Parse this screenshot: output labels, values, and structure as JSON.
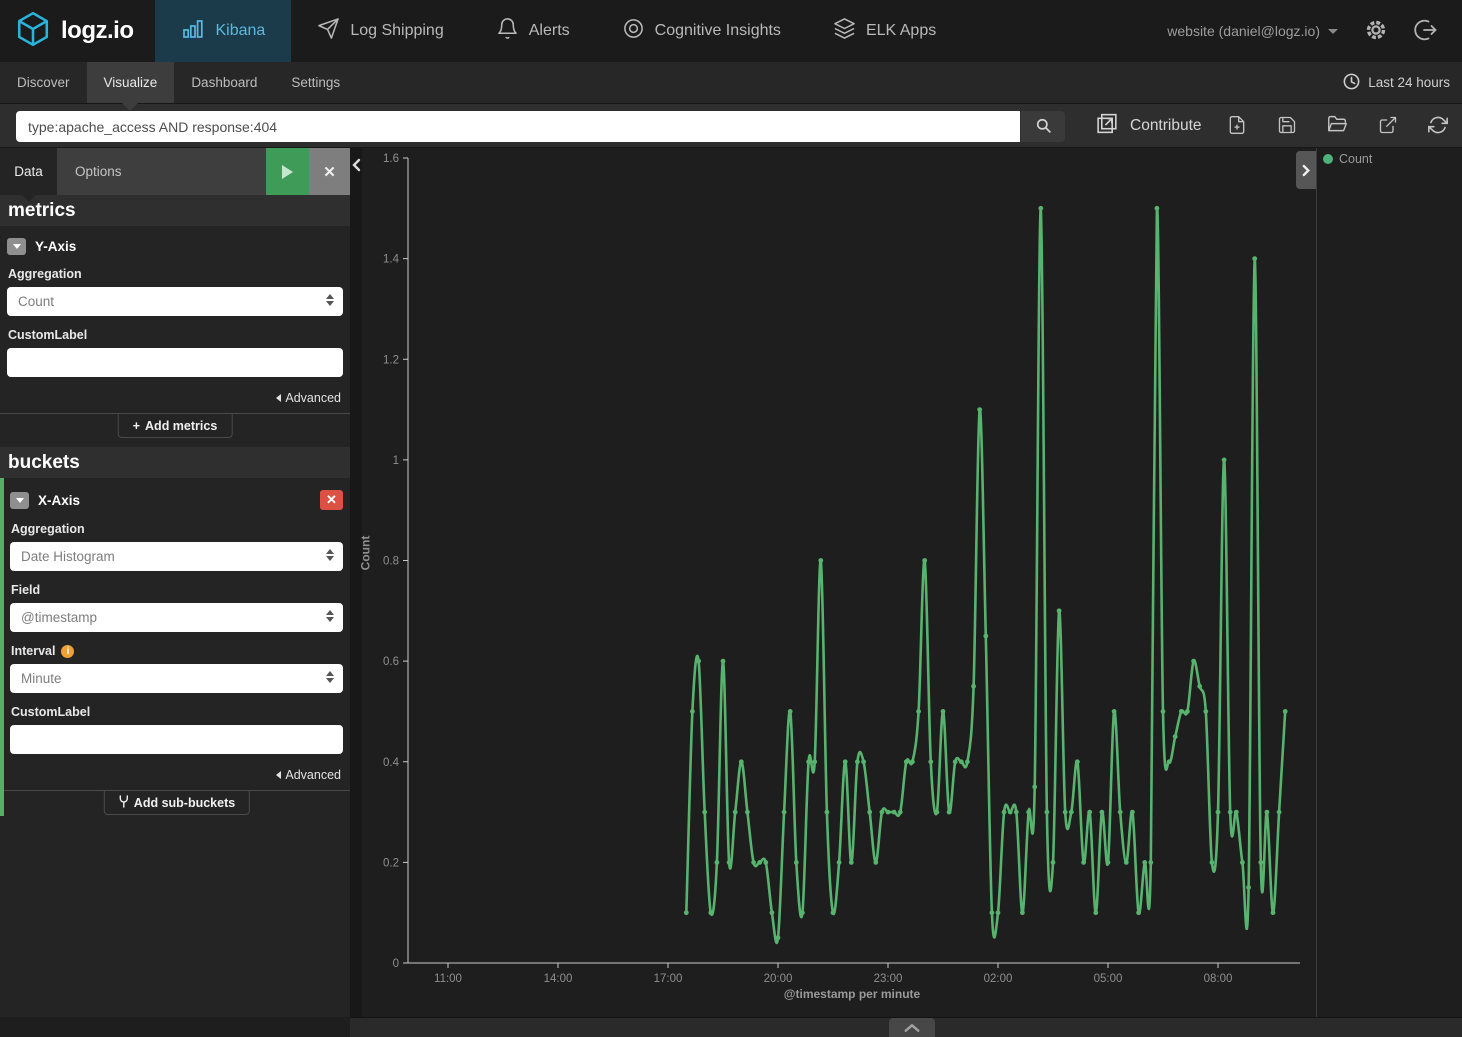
{
  "header": {
    "logo": "logz.io",
    "nav": [
      {
        "label": "Kibana",
        "icon": "bar-chart-icon",
        "active": true
      },
      {
        "label": "Log Shipping",
        "icon": "paper-plane-icon",
        "active": false
      },
      {
        "label": "Alerts",
        "icon": "bell-icon",
        "active": false
      },
      {
        "label": "Cognitive Insights",
        "icon": "eye-icon",
        "active": false
      },
      {
        "label": "ELK Apps",
        "icon": "layers-icon",
        "active": false
      }
    ],
    "account_label": "website (daniel@logz.io)",
    "account_icons": [
      "caret-down-icon",
      "gear-icon",
      "sign-out-icon"
    ]
  },
  "subnav": {
    "tabs": [
      {
        "label": "Discover",
        "active": false
      },
      {
        "label": "Visualize",
        "active": true
      },
      {
        "label": "Dashboard",
        "active": false
      },
      {
        "label": "Settings",
        "active": false
      }
    ],
    "time_range": "Last 24 hours",
    "time_icon": "clock-icon"
  },
  "toolbar": {
    "query": "type:apache_access AND response:404",
    "search_icon": "search-icon",
    "contribute_label": "Contribute",
    "action_icons": [
      "new-visualization-icon",
      "save-icon",
      "open-icon",
      "share-icon",
      "refresh-icon"
    ]
  },
  "sidebar": {
    "tabs": [
      {
        "label": "Data",
        "active": true
      },
      {
        "label": "Options",
        "active": false
      }
    ],
    "apply_icon": "play-icon",
    "discard_icon": "close-icon",
    "metrics": {
      "section_title": "metrics",
      "group_title": "Y-Axis",
      "aggregation_label": "Aggregation",
      "aggregation_value": "Count",
      "custom_label_label": "CustomLabel",
      "custom_label_value": "",
      "advanced_label": "Advanced",
      "add_plus": "+",
      "add_button": "Add metrics"
    },
    "buckets": {
      "section_title": "buckets",
      "group_title": "X-Axis",
      "aggregation_label": "Aggregation",
      "aggregation_value": "Date Histogram",
      "field_label": "Field",
      "field_value": "@timestamp",
      "interval_label": "Interval",
      "interval_info_icon": "info-icon",
      "interval_value": "Minute",
      "custom_label_label": "CustomLabel",
      "custom_label_value": "",
      "advanced_label": "Advanced",
      "add_button": "Add sub-buckets"
    }
  },
  "chart_data": {
    "type": "line",
    "title": "",
    "xlabel": "@timestamp per minute",
    "ylabel": "Count",
    "ylim": [
      0,
      1.6
    ],
    "yticks": [
      0,
      0.2,
      0.4,
      0.6,
      0.8,
      1,
      1.2,
      1.4,
      1.6
    ],
    "xticks": [
      "11:00",
      "14:00",
      "17:00",
      "20:00",
      "23:00",
      "02:00",
      "05:00",
      "08:00"
    ],
    "grid": false,
    "legend_position": "right",
    "legend": [
      {
        "label": "Count",
        "color": "#4db179"
      }
    ],
    "series": [
      {
        "name": "Count",
        "color": "#57b36e",
        "points": [
          [
            "17:30",
            0.1
          ],
          [
            "17:40",
            0.5
          ],
          [
            "17:50",
            0.6
          ],
          [
            "18:00",
            0.3
          ],
          [
            "18:10",
            0.1
          ],
          [
            "18:20",
            0.2
          ],
          [
            "18:30",
            0.6
          ],
          [
            "18:40",
            0.2
          ],
          [
            "18:50",
            0.3
          ],
          [
            "19:00",
            0.4
          ],
          [
            "19:10",
            0.3
          ],
          [
            "19:20",
            0.2
          ],
          [
            "19:30",
            0.2
          ],
          [
            "19:40",
            0.2
          ],
          [
            "19:50",
            0.1
          ],
          [
            "20:00",
            0.05
          ],
          [
            "20:10",
            0.3
          ],
          [
            "20:20",
            0.5
          ],
          [
            "20:30",
            0.2
          ],
          [
            "20:40",
            0.1
          ],
          [
            "20:50",
            0.4
          ],
          [
            "21:00",
            0.4
          ],
          [
            "21:10",
            0.8
          ],
          [
            "21:20",
            0.3
          ],
          [
            "21:30",
            0.1
          ],
          [
            "21:40",
            0.2
          ],
          [
            "21:50",
            0.4
          ],
          [
            "22:00",
            0.2
          ],
          [
            "22:10",
            0.4
          ],
          [
            "22:20",
            0.4
          ],
          [
            "22:30",
            0.3
          ],
          [
            "22:40",
            0.2
          ],
          [
            "22:50",
            0.3
          ],
          [
            "23:00",
            0.3
          ],
          [
            "23:10",
            0.3
          ],
          [
            "23:20",
            0.3
          ],
          [
            "23:30",
            0.4
          ],
          [
            "23:40",
            0.4
          ],
          [
            "23:50",
            0.5
          ],
          [
            "00:00",
            0.8
          ],
          [
            "00:10",
            0.4
          ],
          [
            "00:20",
            0.3
          ],
          [
            "00:30",
            0.5
          ],
          [
            "00:40",
            0.3
          ],
          [
            "00:50",
            0.4
          ],
          [
            "01:00",
            0.4
          ],
          [
            "01:10",
            0.4
          ],
          [
            "01:20",
            0.55
          ],
          [
            "01:30",
            1.1
          ],
          [
            "01:40",
            0.65
          ],
          [
            "01:50",
            0.1
          ],
          [
            "02:00",
            0.1
          ],
          [
            "02:10",
            0.3
          ],
          [
            "02:20",
            0.3
          ],
          [
            "02:30",
            0.3
          ],
          [
            "02:40",
            0.1
          ],
          [
            "02:50",
            0.3
          ],
          [
            "03:00",
            0.35
          ],
          [
            "03:10",
            1.5
          ],
          [
            "03:20",
            0.3
          ],
          [
            "03:30",
            0.2
          ],
          [
            "03:40",
            0.7
          ],
          [
            "03:50",
            0.3
          ],
          [
            "04:00",
            0.3
          ],
          [
            "04:10",
            0.4
          ],
          [
            "04:20",
            0.2
          ],
          [
            "04:30",
            0.3
          ],
          [
            "04:40",
            0.1
          ],
          [
            "04:50",
            0.3
          ],
          [
            "05:00",
            0.2
          ],
          [
            "05:10",
            0.5
          ],
          [
            "05:20",
            0.3
          ],
          [
            "05:30",
            0.2
          ],
          [
            "05:40",
            0.3
          ],
          [
            "05:50",
            0.1
          ],
          [
            "06:00",
            0.2
          ],
          [
            "06:10",
            0.2
          ],
          [
            "06:20",
            1.5
          ],
          [
            "06:30",
            0.5
          ],
          [
            "06:40",
            0.4
          ],
          [
            "06:50",
            0.45
          ],
          [
            "07:00",
            0.5
          ],
          [
            "07:10",
            0.5
          ],
          [
            "07:20",
            0.6
          ],
          [
            "07:30",
            0.55
          ],
          [
            "07:40",
            0.5
          ],
          [
            "07:50",
            0.2
          ],
          [
            "08:00",
            0.3
          ],
          [
            "08:10",
            1.0
          ],
          [
            "08:20",
            0.3
          ],
          [
            "08:30",
            0.3
          ],
          [
            "08:40",
            0.2
          ],
          [
            "08:50",
            0.15
          ],
          [
            "09:00",
            1.4
          ],
          [
            "09:10",
            0.2
          ],
          [
            "09:20",
            0.3
          ],
          [
            "09:30",
            0.1
          ],
          [
            "09:40",
            0.3
          ],
          [
            "09:50",
            0.5
          ]
        ]
      }
    ]
  },
  "footer": {
    "spy_toggle_icon": "chevron-up-icon"
  }
}
